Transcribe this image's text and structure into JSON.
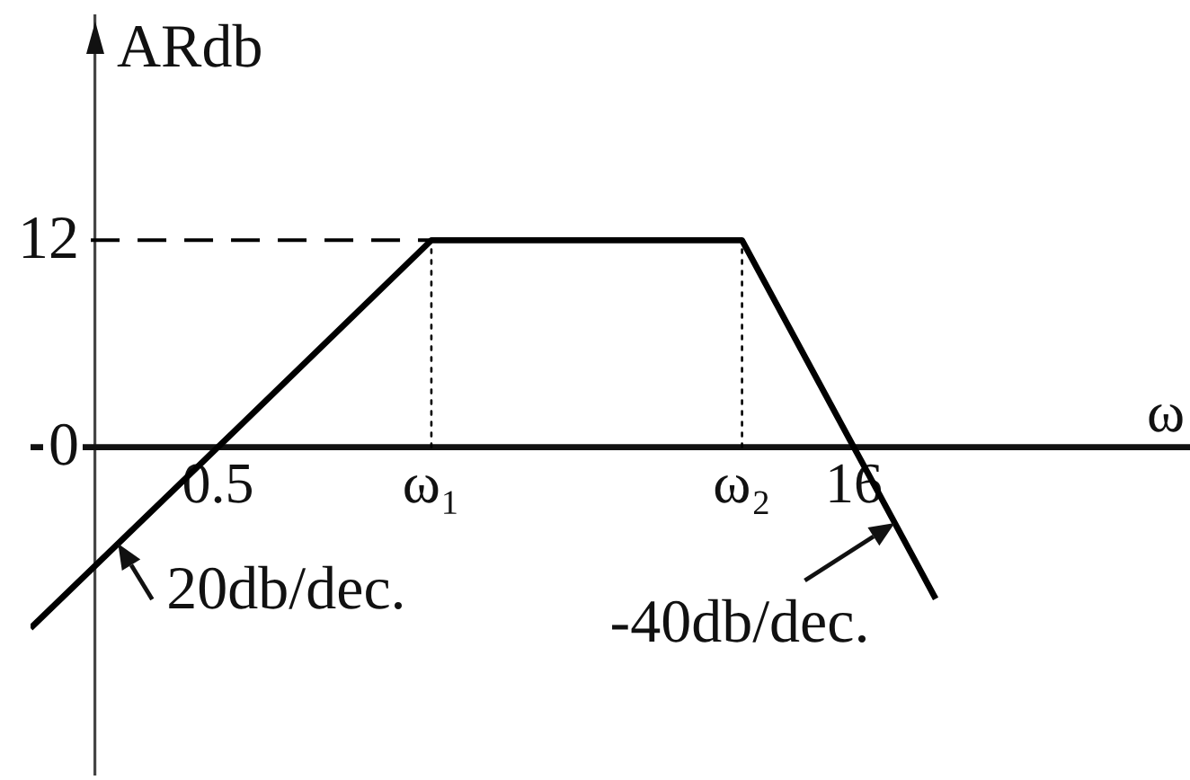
{
  "chart_data": {
    "type": "line",
    "xlabel": "ω",
    "ylabel": "ARdb",
    "log": "x",
    "marker": "none",
    "xlim": [
      0.18,
      100
    ],
    "ylim": [
      -19,
      25
    ],
    "xticks": [
      0.5,
      {
        "value": 1.6,
        "label": "ω₁"
      },
      {
        "value": 8.7,
        "label": "ω₂"
      },
      16
    ],
    "yticks": [
      0,
      12
    ],
    "series": [
      {
        "color": "#000000",
        "x": [
          0.18,
          0.5,
          1.6,
          8.7,
          16,
          25
        ],
        "values": [
          -10.5,
          0,
          12,
          12,
          0,
          -8.8
        ]
      },
      {
        "color": "#000000",
        "x": [
          0.25,
          1.6
        ],
        "values": [
          12,
          12
        ],
        "line_style": "dashed"
      },
      {
        "color": "#000000",
        "x": [
          1.6,
          1.6
        ],
        "values": [
          0,
          12
        ],
        "line_style": "dotted"
      },
      {
        "color": "#000000",
        "x": [
          8.7,
          8.7
        ],
        "values": [
          0,
          12
        ],
        "line_style": "dotted"
      }
    ],
    "annotations": [
      {
        "text": "20db/dec.",
        "x": 0.29,
        "y": -5.6
      },
      {
        "text": "-40db/dec.",
        "x": 20,
        "y": -4.4
      }
    ]
  }
}
